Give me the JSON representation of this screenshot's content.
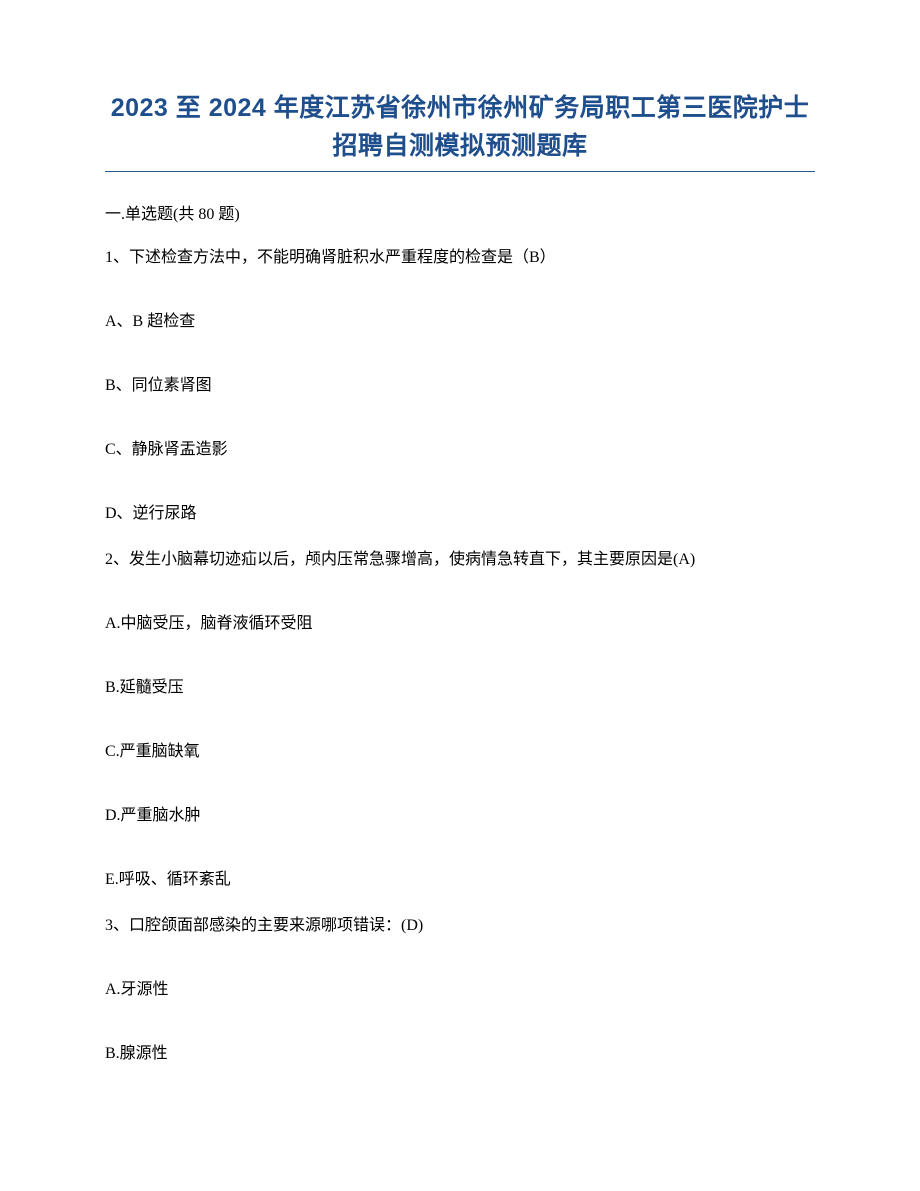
{
  "title": "2023 至 2024 年度江苏省徐州市徐州矿务局职工第三医院护士招聘自测模拟预测题库",
  "section_header": "一.单选题(共 80 题)",
  "questions": [
    {
      "prompt": "1、下述检查方法中，不能明确肾脏积水严重程度的检查是（B）",
      "options": [
        "A、B 超检查",
        "B、同位素肾图",
        "C、静脉肾盂造影",
        "D、逆行尿路"
      ]
    },
    {
      "prompt": "2、发生小脑幕切迹疝以后，颅内压常急骤增高，使病情急转直下，其主要原因是(A)",
      "options": [
        "A.中脑受压，脑脊液循环受阻",
        "B.延髓受压",
        "C.严重脑缺氧",
        "D.严重脑水肿",
        "E.呼吸、循环紊乱"
      ]
    },
    {
      "prompt": "3、口腔颌面部感染的主要来源哪项错误：(D)",
      "options": [
        "A.牙源性",
        "B.腺源性"
      ]
    }
  ],
  "colors": {
    "title_color": "#1f4e8c",
    "title_underline": "#2e5c8a",
    "body_text": "#000000",
    "background": "#ffffff"
  },
  "typography": {
    "title_fontsize": 25,
    "body_fontsize": 16,
    "title_font": "Microsoft YaHei",
    "body_font": "SimSun"
  }
}
